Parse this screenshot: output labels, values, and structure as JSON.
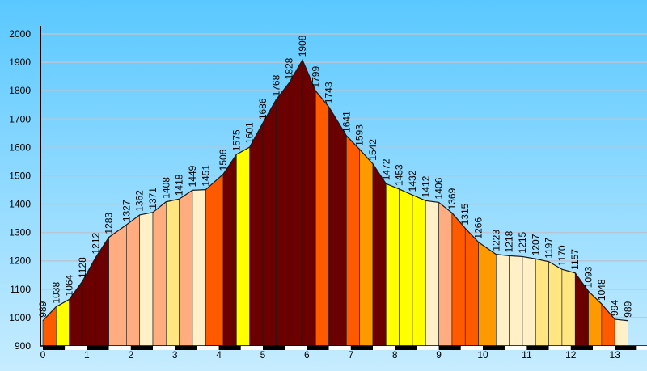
{
  "chart_data": {
    "type": "area",
    "title": "",
    "xlabel": "",
    "ylabel": "",
    "xlim": [
      0,
      13.7
    ],
    "ylim": [
      900,
      2000
    ],
    "x_ticks": [
      "0",
      "1",
      "2",
      "3",
      "4",
      "5",
      "6",
      "7",
      "8",
      "9",
      "10",
      "11",
      "12",
      "13"
    ],
    "y_ticks": [
      "900",
      "1000",
      "1100",
      "1200",
      "1300",
      "1400",
      "1500",
      "1600",
      "1700",
      "1800",
      "1900",
      "2000"
    ],
    "grid": true,
    "legend": "none",
    "points": [
      {
        "x": 0.0,
        "y": 989,
        "label": "989"
      },
      {
        "x": 0.3,
        "y": 1038,
        "label": "1038"
      },
      {
        "x": 0.6,
        "y": 1064,
        "label": "1064"
      },
      {
        "x": 0.9,
        "y": 1128,
        "label": "1128"
      },
      {
        "x": 1.2,
        "y": 1212,
        "label": "1212"
      },
      {
        "x": 1.5,
        "y": 1283,
        "label": "1283"
      },
      {
        "x": 1.9,
        "y": 1327,
        "label": "1327"
      },
      {
        "x": 2.2,
        "y": 1362,
        "label": "1362"
      },
      {
        "x": 2.5,
        "y": 1371,
        "label": "1371"
      },
      {
        "x": 2.8,
        "y": 1408,
        "label": "1408"
      },
      {
        "x": 3.1,
        "y": 1418,
        "label": "1418"
      },
      {
        "x": 3.4,
        "y": 1449,
        "label": "1449"
      },
      {
        "x": 3.7,
        "y": 1451,
        "label": "1451"
      },
      {
        "x": 4.1,
        "y": 1506,
        "label": "1506"
      },
      {
        "x": 4.4,
        "y": 1575,
        "label": "1575"
      },
      {
        "x": 4.7,
        "y": 1601,
        "label": "1601"
      },
      {
        "x": 5.0,
        "y": 1686,
        "label": "1686"
      },
      {
        "x": 5.3,
        "y": 1768,
        "label": "1768"
      },
      {
        "x": 5.6,
        "y": 1828,
        "label": "1828"
      },
      {
        "x": 5.9,
        "y": 1908,
        "label": "1908"
      },
      {
        "x": 6.2,
        "y": 1799,
        "label": "1799"
      },
      {
        "x": 6.5,
        "y": 1743,
        "label": "1743"
      },
      {
        "x": 6.9,
        "y": 1641,
        "label": "1641"
      },
      {
        "x": 7.2,
        "y": 1593,
        "label": "1593"
      },
      {
        "x": 7.5,
        "y": 1542,
        "label": "1542"
      },
      {
        "x": 7.8,
        "y": 1472,
        "label": "1472"
      },
      {
        "x": 8.1,
        "y": 1453,
        "label": "1453"
      },
      {
        "x": 8.4,
        "y": 1432,
        "label": "1432"
      },
      {
        "x": 8.7,
        "y": 1412,
        "label": "1412"
      },
      {
        "x": 9.0,
        "y": 1406,
        "label": "1406"
      },
      {
        "x": 9.3,
        "y": 1369,
        "label": "1369"
      },
      {
        "x": 9.6,
        "y": 1315,
        "label": "1315"
      },
      {
        "x": 9.9,
        "y": 1266,
        "label": "1266"
      },
      {
        "x": 10.3,
        "y": 1223,
        "label": "1223"
      },
      {
        "x": 10.6,
        "y": 1218,
        "label": "1218"
      },
      {
        "x": 10.9,
        "y": 1215,
        "label": "1215"
      },
      {
        "x": 11.2,
        "y": 1207,
        "label": "1207"
      },
      {
        "x": 11.5,
        "y": 1197,
        "label": "1197"
      },
      {
        "x": 11.8,
        "y": 1170,
        "label": "1170"
      },
      {
        "x": 12.1,
        "y": 1157,
        "label": "1157"
      },
      {
        "x": 12.4,
        "y": 1093,
        "label": "1093"
      },
      {
        "x": 12.7,
        "y": 1048,
        "label": "1048"
      },
      {
        "x": 13.0,
        "y": 994,
        "label": "994"
      },
      {
        "x": 13.3,
        "y": 989,
        "label": "989"
      }
    ],
    "segment_colors": [
      "#ff5a00",
      "#ffff00",
      "#6a0000",
      "#6a0000",
      "#6a0000",
      "#ffad80",
      "#ffad80",
      "#fff0c8",
      "#ffad80",
      "#ffe680",
      "#ffad80",
      "#fff0c8",
      "#ff5a00",
      "#6a0000",
      "#ffff00",
      "#6a0000",
      "#6a0000",
      "#6a0000",
      "#6a0000",
      "#6a0000",
      "#ff5a00",
      "#6a0000",
      "#ff5a00",
      "#ff9900",
      "#6a0000",
      "#ffff00",
      "#ffff00",
      "#ffff00",
      "#fff0c8",
      "#ffad80",
      "#ff5a00",
      "#ff5a00",
      "#ff9900",
      "#fff0c8",
      "#fff0c8",
      "#fff0c8",
      "#ffe680",
      "#ffe680",
      "#ffe680",
      "#6a0000",
      "#ff9900",
      "#ff5a00",
      "#fff0c8"
    ],
    "colors": {
      "bg_top": "#5ac8ff",
      "bg_bottom": "#c6ecff",
      "gridline": "#b7c6d6",
      "axis": "#000000",
      "outline": "#1a1a1a"
    }
  }
}
